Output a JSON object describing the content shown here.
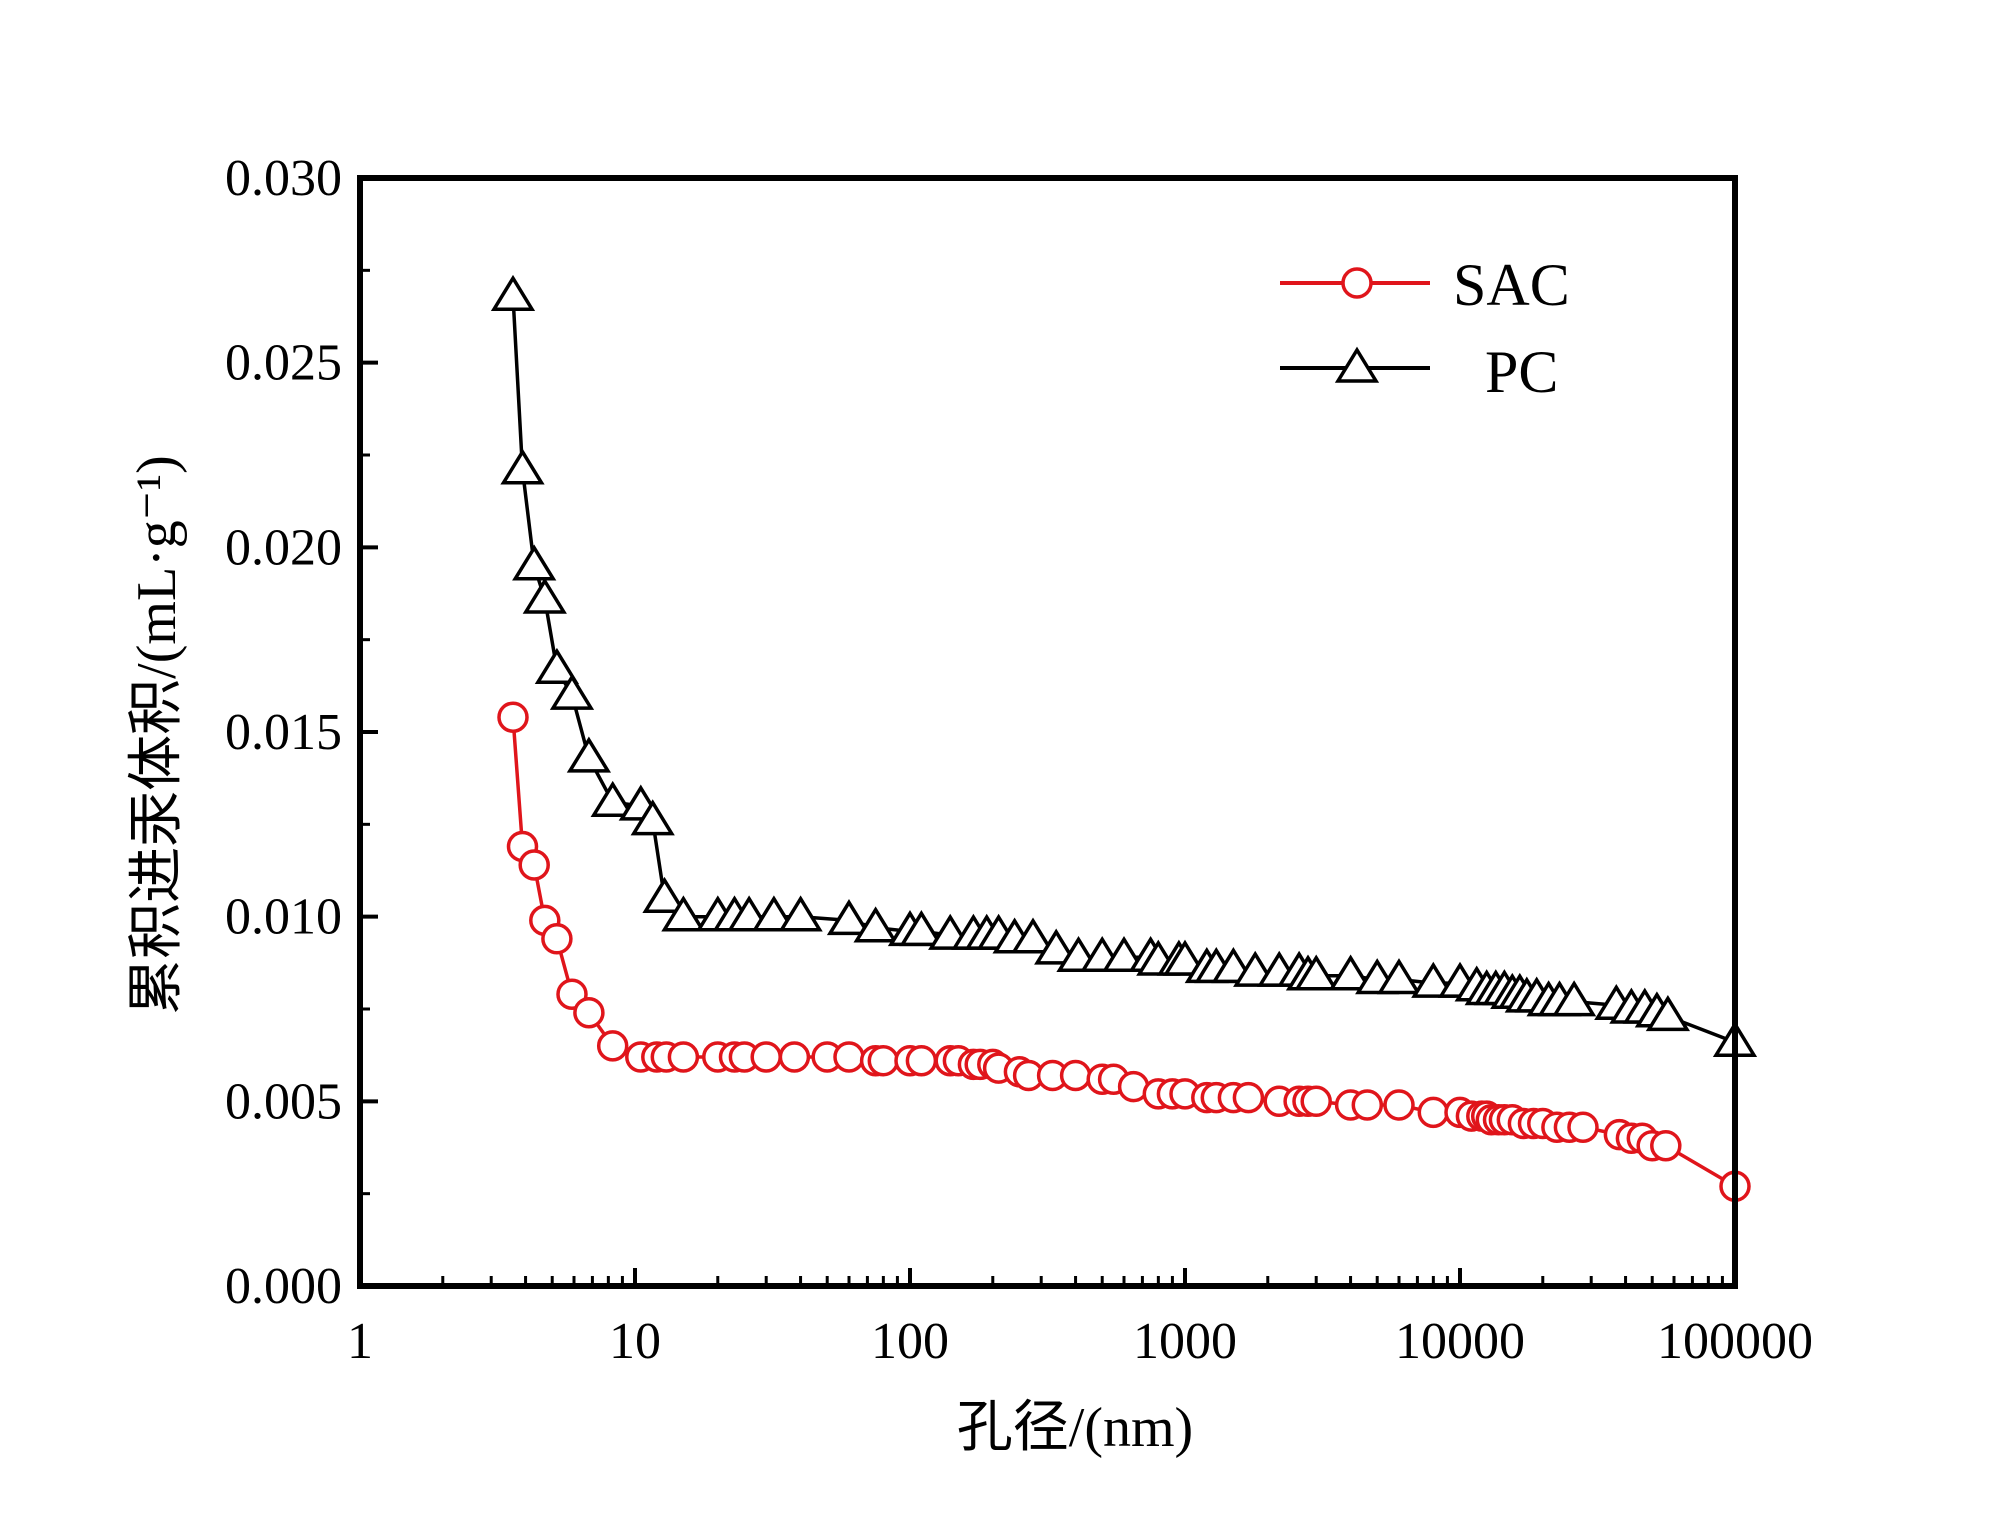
{
  "chart_data": {
    "type": "line",
    "title": "",
    "xlabel": "孔径/(nm)",
    "ylabel": "累积进汞体积/(mL·g⁻¹)",
    "xscale": "log",
    "xlim": [
      1,
      100000
    ],
    "ylim": [
      0,
      0.03
    ],
    "x_ticks": [
      1,
      10,
      100,
      1000,
      10000,
      100000
    ],
    "x_tick_labels": [
      "1",
      "10",
      "100",
      "1000",
      "10000",
      "100000"
    ],
    "y_ticks": [
      0,
      0.005,
      0.01,
      0.015,
      0.02,
      0.025,
      0.03
    ],
    "y_tick_labels": [
      "0.000",
      "0.005",
      "0.010",
      "0.015",
      "0.020",
      "0.025",
      "0.030"
    ],
    "legend_position": "top-right",
    "series": [
      {
        "name": "SAC",
        "color": "#e0151b",
        "marker": "circle",
        "x": [
          3.6,
          3.9,
          4.3,
          4.7,
          5.2,
          5.9,
          6.8,
          8.3,
          10.5,
          12,
          13,
          15,
          20,
          23,
          25,
          30,
          38,
          50,
          60,
          75,
          80,
          100,
          110,
          140,
          150,
          170,
          180,
          200,
          210,
          250,
          270,
          330,
          400,
          500,
          550,
          650,
          800,
          900,
          1000,
          1200,
          1300,
          1500,
          1700,
          2200,
          2600,
          2800,
          3000,
          4000,
          4600,
          6000,
          8000,
          10000,
          11000,
          12000,
          12500,
          13000,
          13800,
          14500,
          15500,
          17000,
          18500,
          20000,
          22500,
          25000,
          28000,
          38000,
          42000,
          46000,
          50000,
          56000,
          100000
        ],
        "values": [
          0.0154,
          0.0119,
          0.0114,
          0.0099,
          0.0094,
          0.0079,
          0.0074,
          0.0065,
          0.0062,
          0.0062,
          0.0062,
          0.0062,
          0.0062,
          0.0062,
          0.0062,
          0.0062,
          0.0062,
          0.0062,
          0.0062,
          0.0061,
          0.0061,
          0.0061,
          0.0061,
          0.0061,
          0.0061,
          0.006,
          0.006,
          0.006,
          0.0059,
          0.0058,
          0.0057,
          0.0057,
          0.0057,
          0.0056,
          0.0056,
          0.0054,
          0.0052,
          0.0052,
          0.0052,
          0.0051,
          0.0051,
          0.0051,
          0.0051,
          0.005,
          0.005,
          0.005,
          0.005,
          0.0049,
          0.0049,
          0.0049,
          0.0047,
          0.0047,
          0.0046,
          0.0046,
          0.0046,
          0.0045,
          0.0045,
          0.0045,
          0.0045,
          0.0044,
          0.0044,
          0.0044,
          0.0043,
          0.0043,
          0.0043,
          0.0041,
          0.004,
          0.004,
          0.0038,
          0.0038,
          0.0027
        ]
      },
      {
        "name": "PC",
        "color": "#000000",
        "marker": "triangle",
        "x": [
          3.6,
          3.9,
          4.3,
          4.7,
          5.2,
          5.9,
          6.8,
          8.3,
          10.5,
          11.6,
          12.8,
          15,
          20,
          23,
          26,
          32,
          40,
          60,
          75,
          100,
          110,
          140,
          170,
          190,
          210,
          240,
          280,
          340,
          410,
          500,
          600,
          750,
          800,
          950,
          1000,
          1200,
          1300,
          1500,
          1800,
          2200,
          2600,
          2800,
          3000,
          4000,
          5000,
          6000,
          8000,
          10000,
          11500,
          12500,
          13500,
          14500,
          15500,
          16500,
          17500,
          19000,
          21000,
          23000,
          26000,
          37000,
          42000,
          47000,
          52000,
          57000,
          100000
        ],
        "values": [
          0.0268,
          0.0221,
          0.0195,
          0.0186,
          0.0167,
          0.016,
          0.0143,
          0.0131,
          0.013,
          0.0126,
          0.0105,
          0.01,
          0.01,
          0.01,
          0.01,
          0.01,
          0.01,
          0.0099,
          0.0097,
          0.0096,
          0.0096,
          0.0095,
          0.0095,
          0.0095,
          0.0095,
          0.0094,
          0.0094,
          0.0091,
          0.0089,
          0.0089,
          0.0089,
          0.0089,
          0.0088,
          0.0088,
          0.0088,
          0.0086,
          0.0086,
          0.0086,
          0.0085,
          0.0085,
          0.0085,
          0.0084,
          0.0084,
          0.0084,
          0.0083,
          0.0083,
          0.0082,
          0.0082,
          0.0081,
          0.008,
          0.008,
          0.008,
          0.0079,
          0.0079,
          0.0078,
          0.0078,
          0.0077,
          0.0077,
          0.0077,
          0.0076,
          0.0075,
          0.0075,
          0.0074,
          0.0073,
          0.0066
        ]
      }
    ]
  }
}
